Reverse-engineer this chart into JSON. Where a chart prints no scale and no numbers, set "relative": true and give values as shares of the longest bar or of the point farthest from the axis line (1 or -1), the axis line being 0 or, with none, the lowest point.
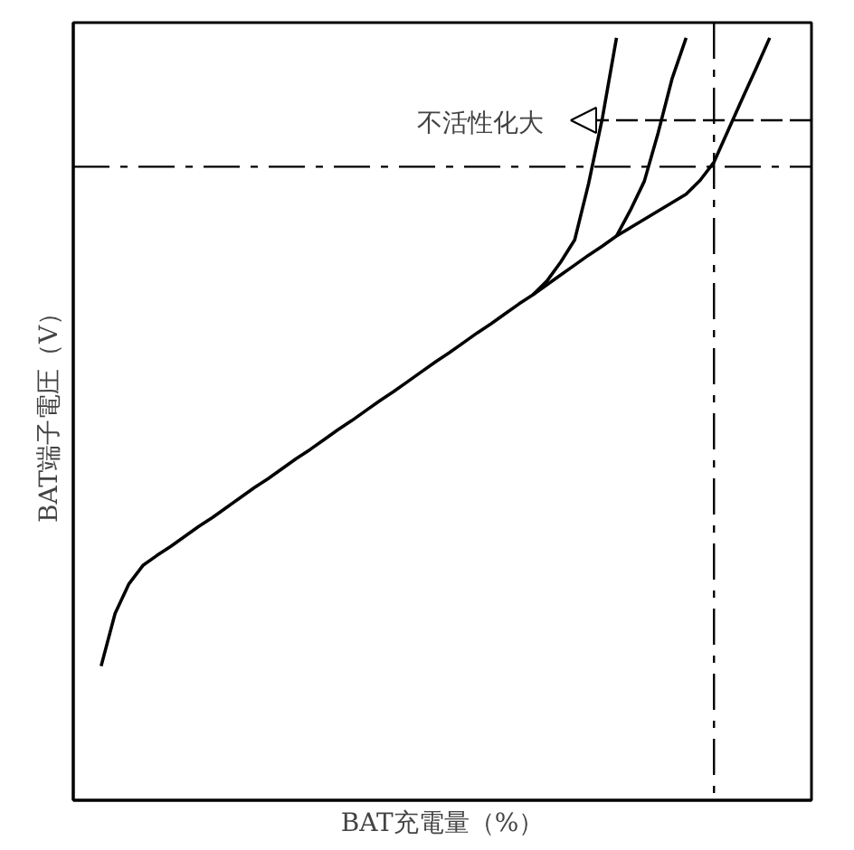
{
  "chart_data": {
    "type": "line",
    "relative": true,
    "xlabel": "BAT充電量（%）",
    "ylabel": "BAT端子電圧（V）",
    "categories": [
      null,
      null,
      null,
      null,
      null,
      null,
      null,
      null,
      null,
      null,
      null,
      null,
      null,
      null,
      null,
      null,
      null,
      null,
      null,
      null,
      null,
      null,
      null,
      null,
      null,
      null,
      null,
      null,
      null,
      null,
      null,
      null,
      null,
      null,
      null,
      null,
      null,
      null,
      null,
      null,
      null,
      null,
      null,
      null,
      null,
      null,
      null,
      null,
      null,
      null,
      null
    ],
    "series": [
      {
        "color": "#000000",
        "values": [
          null,
          null,
          0.176,
          0.245,
          0.284,
          0.308,
          0.321,
          0.333,
          0.346,
          0.359,
          0.371,
          0.384,
          0.397,
          0.41,
          0.422,
          0.435,
          0.448,
          0.46,
          0.473,
          0.486,
          0.498,
          0.511,
          0.524,
          0.536,
          0.549,
          0.562,
          0.575,
          0.587,
          0.6,
          0.613,
          0.625,
          0.638,
          0.651,
          0.663,
          0.676,
          0.689,
          0.702,
          0.715,
          0.727,
          0.74,
          0.751,
          0.762,
          0.773,
          0.784,
          0.795,
          0.813,
          0.837,
          0.878,
          0.919,
          0.959,
          1.0
        ]
      },
      {
        "color": "#000000",
        "values": [
          null,
          null,
          null,
          null,
          null,
          null,
          null,
          null,
          null,
          null,
          null,
          null,
          null,
          null,
          null,
          null,
          null,
          null,
          null,
          null,
          null,
          null,
          null,
          null,
          null,
          null,
          null,
          null,
          null,
          null,
          null,
          null,
          null,
          0.663,
          0.681,
          0.706,
          0.735,
          0.809,
          0.896,
          1.0,
          null,
          null,
          null,
          null,
          null,
          null,
          null,
          null,
          null,
          null,
          null
        ]
      },
      {
        "color": "#000000",
        "values": [
          null,
          null,
          null,
          null,
          null,
          null,
          null,
          null,
          null,
          null,
          null,
          null,
          null,
          null,
          null,
          null,
          null,
          null,
          null,
          null,
          null,
          null,
          null,
          null,
          null,
          null,
          null,
          null,
          null,
          null,
          null,
          null,
          null,
          null,
          null,
          null,
          null,
          null,
          null,
          0.74,
          0.774,
          0.812,
          0.876,
          0.947,
          1.0,
          null,
          null,
          null,
          null,
          null,
          null
        ]
      }
    ],
    "ref_lines": [
      {
        "axis": "y",
        "value": 0.831,
        "line_style": "dashdot",
        "color": "#000000"
      }
    ],
    "annotations": [
      "不活性化大"
    ]
  }
}
